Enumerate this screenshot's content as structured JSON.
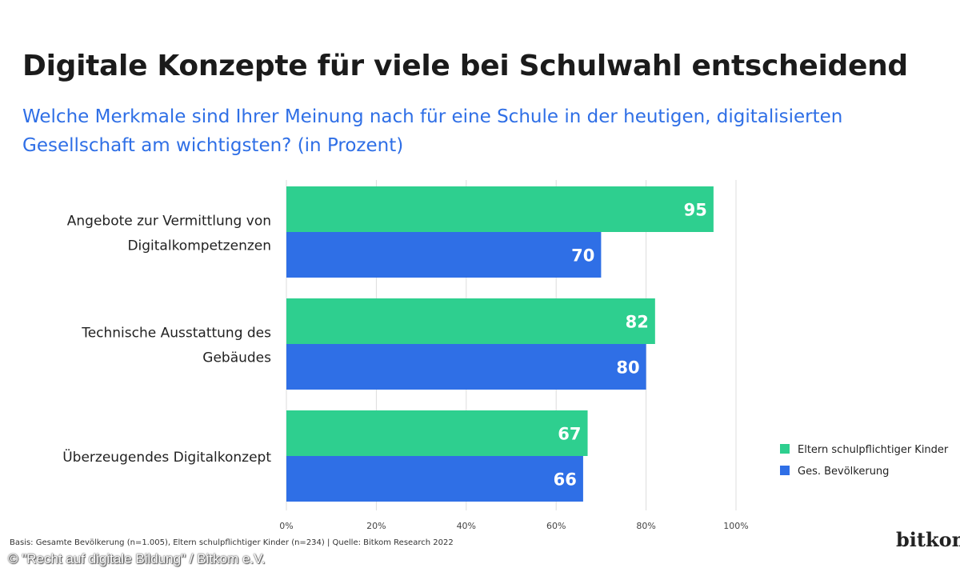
{
  "title": "Digitale Konzepte für viele bei Schulwahl entscheidend",
  "subtitle": "Welche Merkmale sind Ihrer Meinung nach für eine Schule in der heutigen, digitalisierten Gesellschaft am wichtigsten? (in Prozent)",
  "footnote": "Basis: Gesamte Bevölkerung (n=1.005), Eltern schulpflichtiger Kinder (n=234) | Quelle: Bitkom Research 2022",
  "copyright": "© \"Recht auf digitale Bildung\" / Bitkom e.V.",
  "logo": "bitkom",
  "colors": {
    "eltern": "#2ecf8f",
    "bevoelkerung": "#2f6fe6",
    "grid": "#dddddd"
  },
  "chart_data": {
    "type": "bar",
    "orientation": "horizontal",
    "categories": [
      [
        "Angebote zur Vermittlung von",
        "Digitalkompetzenzen"
      ],
      [
        "Technische Ausstattung des",
        "Gebäudes"
      ],
      [
        "Überzeugendes Digitalkonzept"
      ]
    ],
    "series": [
      {
        "name": "Eltern schulpflichtiger Kinder",
        "values": [
          95,
          82,
          67
        ],
        "color": "#2ecf8f"
      },
      {
        "name": "Ges. Bevölkerung",
        "values": [
          70,
          80,
          66
        ],
        "color": "#2f6fe6"
      }
    ],
    "xlim": [
      0,
      100
    ],
    "ticks": [
      "0%",
      "20%",
      "40%",
      "60%",
      "80%",
      "100%"
    ],
    "tick_values": [
      0,
      20,
      40,
      60,
      80,
      100
    ],
    "grid": true,
    "legend_position": "right"
  }
}
